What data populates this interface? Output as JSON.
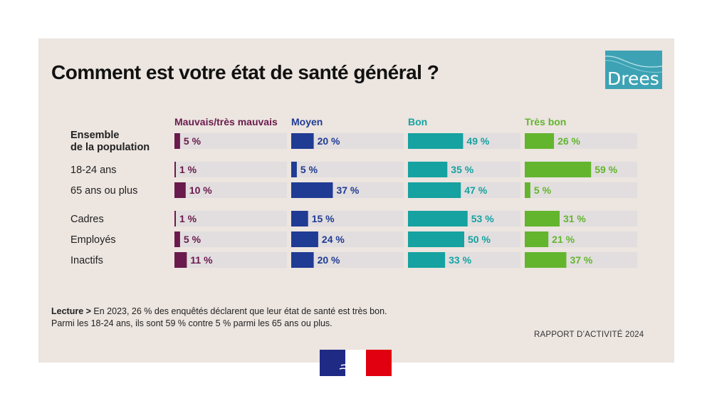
{
  "title": "Comment est votre état de santé général ?",
  "logo_text": "Drees",
  "note": {
    "label": "Lecture >",
    "line1": " En 2023, 26 % des enquêtés déclarent que leur état de santé est très bon.",
    "line2": "Parmi les 18-24 ans, ils sont 59 % contre 5 % parmi les 65 ans ou plus."
  },
  "footer": "RAPPORT D’ACTIVITÉ 2024",
  "colors": {
    "mauvais": "#6a1a4c",
    "moyen": "#1f3b93",
    "bon": "#15a2a0",
    "tres_bon": "#63b52e",
    "track": "#e2dedf"
  },
  "chart_data": {
    "type": "bar",
    "orientation": "horizontal",
    "title": "Comment est votre état de santé général ?",
    "unit": "%",
    "xlim": [
      0,
      100
    ],
    "categories": [
      {
        "label": "Ensemble\nde la population",
        "bold": true
      },
      {
        "label": "18-24 ans",
        "bold": false
      },
      {
        "label": "65 ans ou plus",
        "bold": false
      },
      {
        "label": "Cadres",
        "bold": false
      },
      {
        "label": "Employés",
        "bold": false
      },
      {
        "label": "Inactifs",
        "bold": false
      }
    ],
    "series": [
      {
        "name": "Mauvais/très mauvais",
        "color": "#6a1a4c",
        "values": [
          5,
          1,
          10,
          1,
          5,
          11
        ],
        "labels": [
          "5 %",
          "1 %",
          "10 %",
          "1 %",
          "5 %",
          "11 %"
        ]
      },
      {
        "name": "Moyen",
        "color": "#1f3b93",
        "values": [
          20,
          5,
          37,
          15,
          24,
          20
        ],
        "labels": [
          "20 %",
          "5 %",
          "37 %",
          "15 %",
          "24 %",
          "20 %"
        ]
      },
      {
        "name": "Bon",
        "color": "#15a2a0",
        "values": [
          49,
          35,
          47,
          53,
          50,
          33
        ],
        "labels": [
          "49 %",
          "35 %",
          "47 %",
          "53 %",
          "50 %",
          "33 %"
        ]
      },
      {
        "name": "Très bon",
        "color": "#63b52e",
        "values": [
          26,
          59,
          5,
          31,
          21,
          37
        ],
        "labels": [
          "26 %",
          "59 %",
          "5 %",
          "31 %",
          "21 %",
          "37 %"
        ]
      }
    ]
  }
}
